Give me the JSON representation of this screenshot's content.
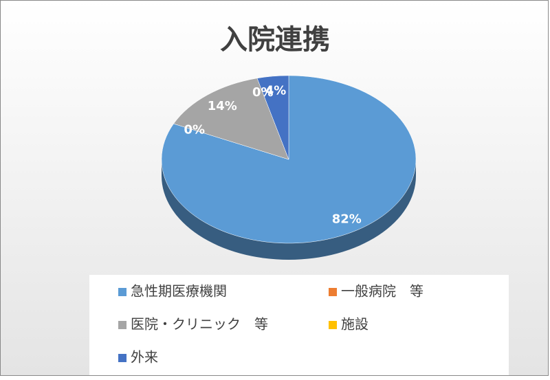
{
  "chart_data": {
    "type": "pie",
    "title": "入院連携",
    "categories": [
      "急性期医療機関",
      "一般病院　等",
      "医院・クリニック　等",
      "施設",
      "外来"
    ],
    "values": [
      82,
      0,
      14,
      0,
      4
    ],
    "value_labels": [
      "82%",
      "0%",
      "14%",
      "0%",
      "4%"
    ],
    "colors": [
      "#5b9bd5",
      "#ed7d31",
      "#a5a5a5",
      "#ffc000",
      "#4472c4"
    ]
  }
}
